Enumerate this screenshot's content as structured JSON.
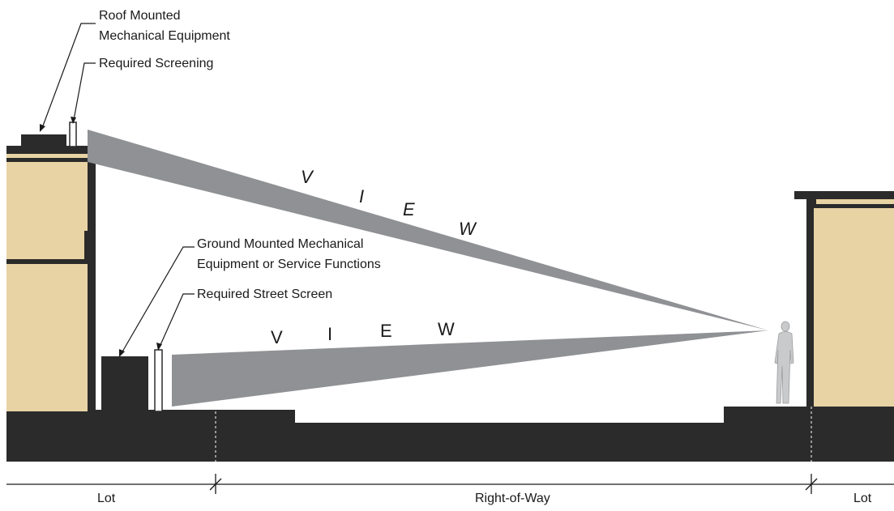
{
  "labels": {
    "roof_equipment_line1": "Roof Mounted",
    "roof_equipment_line2": "Mechanical Equipment",
    "roof_screening": "Required Screening",
    "ground_equipment_line1": "Ground Mounted Mechanical",
    "ground_equipment_line2": "Equipment or Service Functions",
    "street_screen": "Required Street Screen"
  },
  "view_upper": [
    "V",
    "I",
    "E",
    "W"
  ],
  "view_lower": [
    "V",
    "I",
    "E",
    "W"
  ],
  "dimensions": {
    "lot_left": "Lot",
    "right_of_way": "Right-of-Way",
    "lot_right": "Lot"
  },
  "colors": {
    "building_fill": "#e8d3a4",
    "dark": "#2b2b2b",
    "view_cone": "#8f9194",
    "person": "#c9cacb"
  }
}
